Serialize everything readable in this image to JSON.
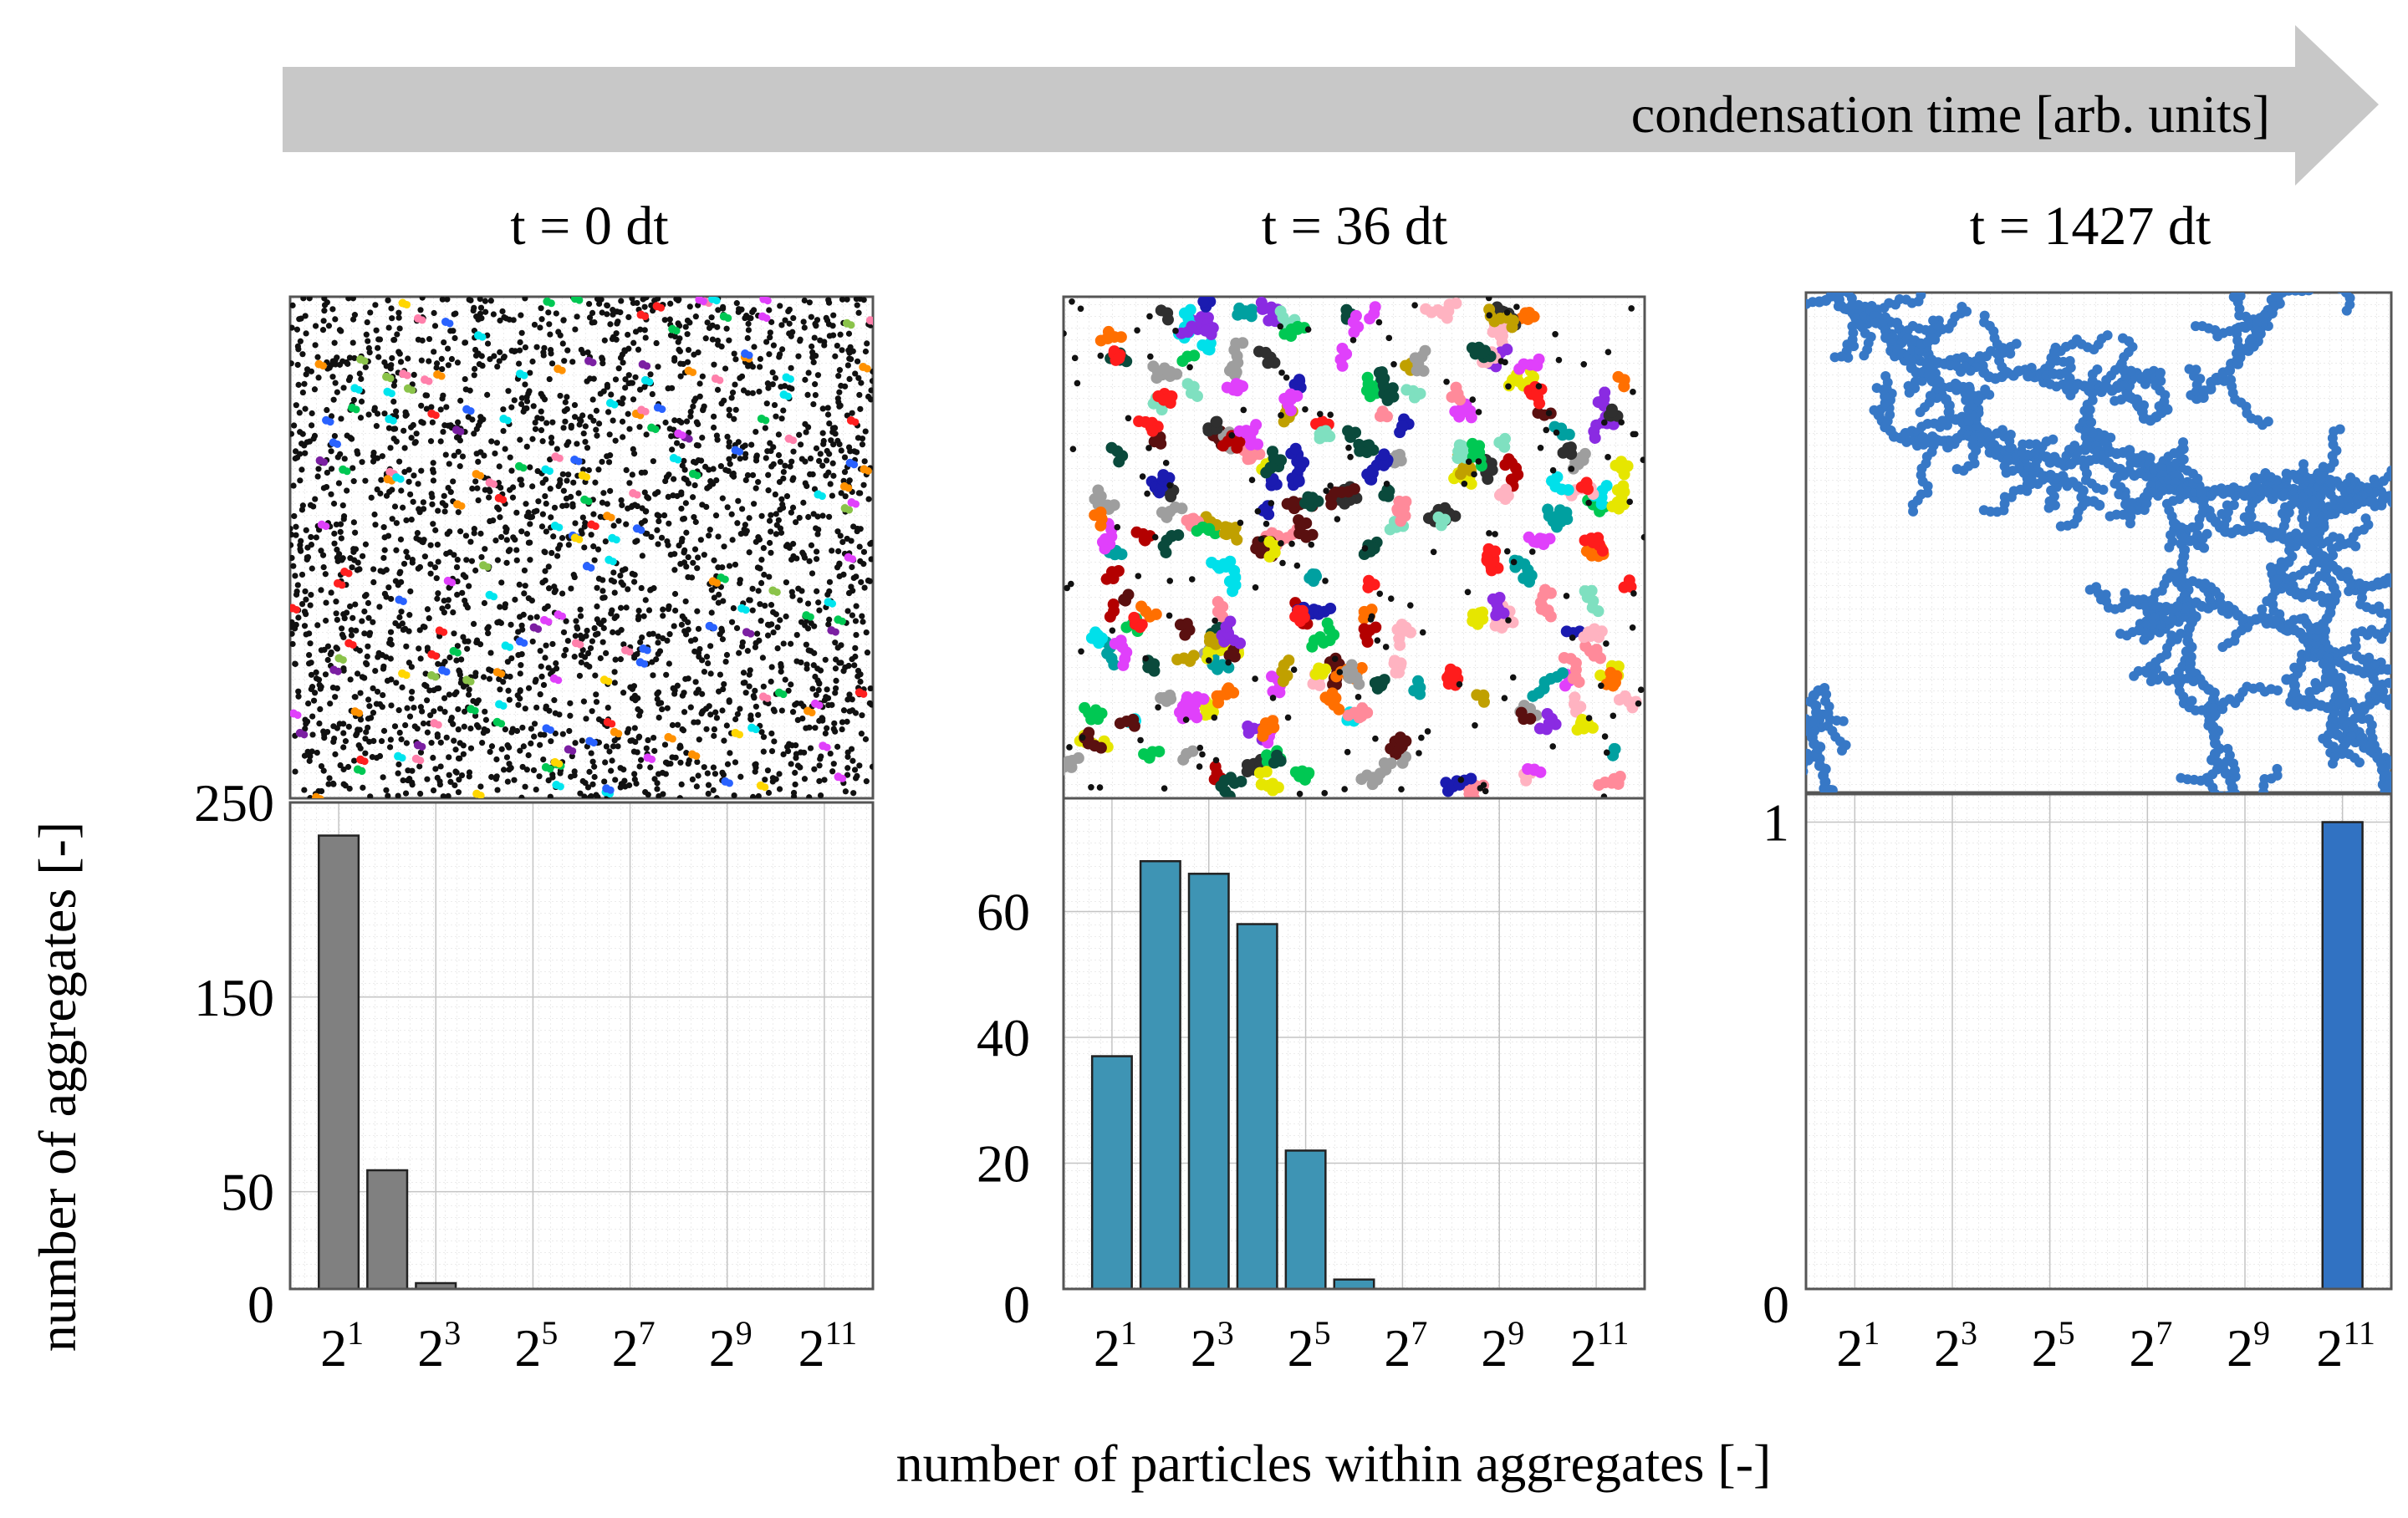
{
  "arrow": {
    "label": "condensation time [arb. units]"
  },
  "panels": [
    {
      "title": "t = 0 dt"
    },
    {
      "title": "t = 36 dt"
    },
    {
      "title": "t = 1427 dt"
    }
  ],
  "axes": {
    "ylabel": "number of aggregates [-]",
    "xlabel": "number of particles within aggregates [-]"
  },
  "colors": {
    "arrow": "#c8c8c8",
    "panel1_bar": "#808080",
    "panel2_bar": "#3e94b4",
    "panel3_bar": "#3172c2",
    "particles_black": "#111111",
    "fractal": "#3778c6"
  },
  "chart_data": [
    {
      "type": "bar",
      "title": "t = 0 dt",
      "x_scale": "log2",
      "x_exponents": [
        1,
        2,
        3
      ],
      "values": [
        233,
        61,
        3
      ],
      "ylim": [
        0,
        250
      ],
      "yticks": [
        "0",
        "50",
        "150",
        "250"
      ],
      "ytick_values": [
        0,
        50,
        150,
        250
      ],
      "xticks": [
        {
          "base": "2",
          "exp": "1"
        },
        {
          "base": "2",
          "exp": "3"
        },
        {
          "base": "2",
          "exp": "5"
        },
        {
          "base": "2",
          "exp": "7"
        },
        {
          "base": "2",
          "exp": "9"
        },
        {
          "base": "2",
          "exp": "11"
        }
      ],
      "grid": true,
      "bar_color": "#808080"
    },
    {
      "type": "bar",
      "title": "t = 36 dt",
      "x_scale": "log2",
      "x_exponents": [
        1,
        2,
        3,
        4,
        5,
        6
      ],
      "values": [
        37,
        68,
        66,
        58,
        22,
        1.5
      ],
      "ylim": [
        0,
        78
      ],
      "yticks": [
        "0",
        "20",
        "40",
        "60"
      ],
      "ytick_values": [
        0,
        20,
        40,
        60
      ],
      "xticks": [
        {
          "base": "2",
          "exp": "1"
        },
        {
          "base": "2",
          "exp": "3"
        },
        {
          "base": "2",
          "exp": "5"
        },
        {
          "base": "2",
          "exp": "7"
        },
        {
          "base": "2",
          "exp": "9"
        },
        {
          "base": "2",
          "exp": "11"
        }
      ],
      "grid": true,
      "bar_color": "#3e94b4"
    },
    {
      "type": "bar",
      "title": "t = 1427 dt",
      "x_scale": "log2",
      "x_exponents": [
        11
      ],
      "values": [
        1
      ],
      "ylim": [
        0,
        1.06
      ],
      "yticks": [
        "0",
        "1"
      ],
      "ytick_values": [
        0,
        1
      ],
      "xticks": [
        {
          "base": "2",
          "exp": "1"
        },
        {
          "base": "2",
          "exp": "3"
        },
        {
          "base": "2",
          "exp": "5"
        },
        {
          "base": "2",
          "exp": "7"
        },
        {
          "base": "2",
          "exp": "9"
        },
        {
          "base": "2",
          "exp": "11"
        }
      ],
      "grid": true,
      "bar_color": "#3172c2"
    }
  ]
}
